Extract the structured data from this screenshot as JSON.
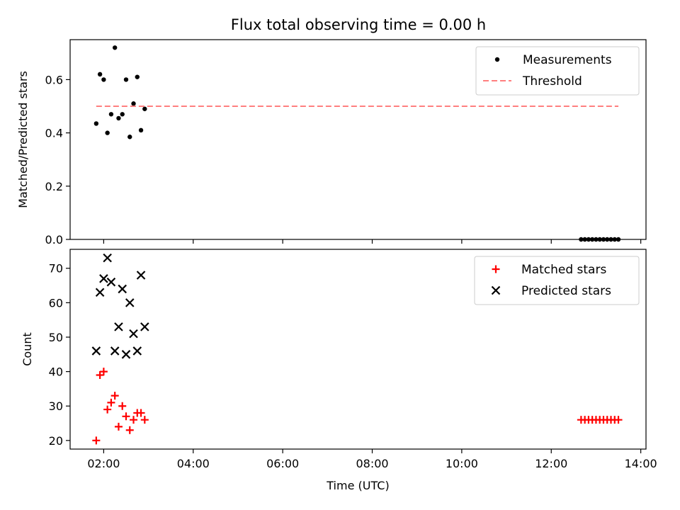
{
  "title": "Flux total observing time = 0.00 h",
  "chart_data": [
    {
      "type": "scatter",
      "title": "Flux total observing time = 0.00 h",
      "xlabel": "",
      "ylabel": "Matched/Predicted stars",
      "xlim": [
        "01:15",
        "14:07"
      ],
      "ylim": [
        0,
        0.75
      ],
      "yticks": [
        0.0,
        0.2,
        0.4,
        0.6
      ],
      "ytick_labels": [
        "0.0",
        "0.2",
        "0.4",
        "0.6"
      ],
      "legend_position": "upper right",
      "series": [
        {
          "name": "Measurements",
          "marker": "dot",
          "color": "#000000",
          "points": [
            {
              "x": "01:50",
              "y": 0.435
            },
            {
              "x": "01:55",
              "y": 0.62
            },
            {
              "x": "02:00",
              "y": 0.6
            },
            {
              "x": "02:05",
              "y": 0.4
            },
            {
              "x": "02:10",
              "y": 0.47
            },
            {
              "x": "02:15",
              "y": 0.72
            },
            {
              "x": "02:20",
              "y": 0.455
            },
            {
              "x": "02:25",
              "y": 0.47
            },
            {
              "x": "02:30",
              "y": 0.6
            },
            {
              "x": "02:35",
              "y": 0.385
            },
            {
              "x": "02:40",
              "y": 0.51
            },
            {
              "x": "02:45",
              "y": 0.61
            },
            {
              "x": "02:50",
              "y": 0.41
            },
            {
              "x": "02:55",
              "y": 0.49
            },
            {
              "x": "12:40",
              "y": 0.0
            },
            {
              "x": "12:45",
              "y": 0.0
            },
            {
              "x": "12:50",
              "y": 0.0
            },
            {
              "x": "12:55",
              "y": 0.0
            },
            {
              "x": "13:00",
              "y": 0.0
            },
            {
              "x": "13:05",
              "y": 0.0
            },
            {
              "x": "13:10",
              "y": 0.0
            },
            {
              "x": "13:15",
              "y": 0.0
            },
            {
              "x": "13:20",
              "y": 0.0
            },
            {
              "x": "13:25",
              "y": 0.0
            },
            {
              "x": "13:30",
              "y": 0.0
            }
          ]
        },
        {
          "name": "Threshold",
          "type": "line",
          "style": "dashed",
          "color": "#ff7f7f",
          "points": [
            {
              "x": "01:50",
              "y": 0.5
            },
            {
              "x": "13:30",
              "y": 0.5
            }
          ]
        }
      ]
    },
    {
      "type": "scatter",
      "xlabel": "Time (UTC)",
      "ylabel": "Count",
      "xlim": [
        "01:15",
        "14:07"
      ],
      "ylim": [
        17.5,
        75.5
      ],
      "yticks": [
        20,
        30,
        40,
        50,
        60,
        70
      ],
      "ytick_labels": [
        "20",
        "30",
        "40",
        "50",
        "60",
        "70"
      ],
      "xticks": [
        "02:00",
        "04:00",
        "06:00",
        "08:00",
        "10:00",
        "12:00",
        "14:00"
      ],
      "xtick_labels": [
        "02:00",
        "04:00",
        "06:00",
        "08:00",
        "10:00",
        "12:00",
        "14:00"
      ],
      "legend_position": "upper right",
      "series": [
        {
          "name": "Matched stars",
          "marker": "plus",
          "color": "#ff0000",
          "points": [
            {
              "x": "01:50",
              "y": 20
            },
            {
              "x": "01:55",
              "y": 39
            },
            {
              "x": "02:00",
              "y": 40
            },
            {
              "x": "02:05",
              "y": 29
            },
            {
              "x": "02:10",
              "y": 31
            },
            {
              "x": "02:15",
              "y": 33
            },
            {
              "x": "02:20",
              "y": 24
            },
            {
              "x": "02:25",
              "y": 30
            },
            {
              "x": "02:30",
              "y": 27
            },
            {
              "x": "02:35",
              "y": 23
            },
            {
              "x": "02:40",
              "y": 26
            },
            {
              "x": "02:45",
              "y": 28
            },
            {
              "x": "02:50",
              "y": 28
            },
            {
              "x": "02:55",
              "y": 26
            },
            {
              "x": "12:40",
              "y": 26
            },
            {
              "x": "12:45",
              "y": 26
            },
            {
              "x": "12:50",
              "y": 26
            },
            {
              "x": "12:55",
              "y": 26
            },
            {
              "x": "13:00",
              "y": 26
            },
            {
              "x": "13:05",
              "y": 26
            },
            {
              "x": "13:10",
              "y": 26
            },
            {
              "x": "13:15",
              "y": 26
            },
            {
              "x": "13:20",
              "y": 26
            },
            {
              "x": "13:25",
              "y": 26
            },
            {
              "x": "13:30",
              "y": 26
            }
          ]
        },
        {
          "name": "Predicted stars",
          "marker": "x",
          "color": "#000000",
          "points": [
            {
              "x": "01:50",
              "y": 46
            },
            {
              "x": "01:55",
              "y": 63
            },
            {
              "x": "02:00",
              "y": 67
            },
            {
              "x": "02:05",
              "y": 73
            },
            {
              "x": "02:10",
              "y": 66
            },
            {
              "x": "02:15",
              "y": 46
            },
            {
              "x": "02:20",
              "y": 53
            },
            {
              "x": "02:25",
              "y": 64
            },
            {
              "x": "02:30",
              "y": 45
            },
            {
              "x": "02:35",
              "y": 60
            },
            {
              "x": "02:40",
              "y": 51
            },
            {
              "x": "02:45",
              "y": 46
            },
            {
              "x": "02:50",
              "y": 68
            },
            {
              "x": "02:55",
              "y": 53
            }
          ]
        }
      ]
    }
  ]
}
